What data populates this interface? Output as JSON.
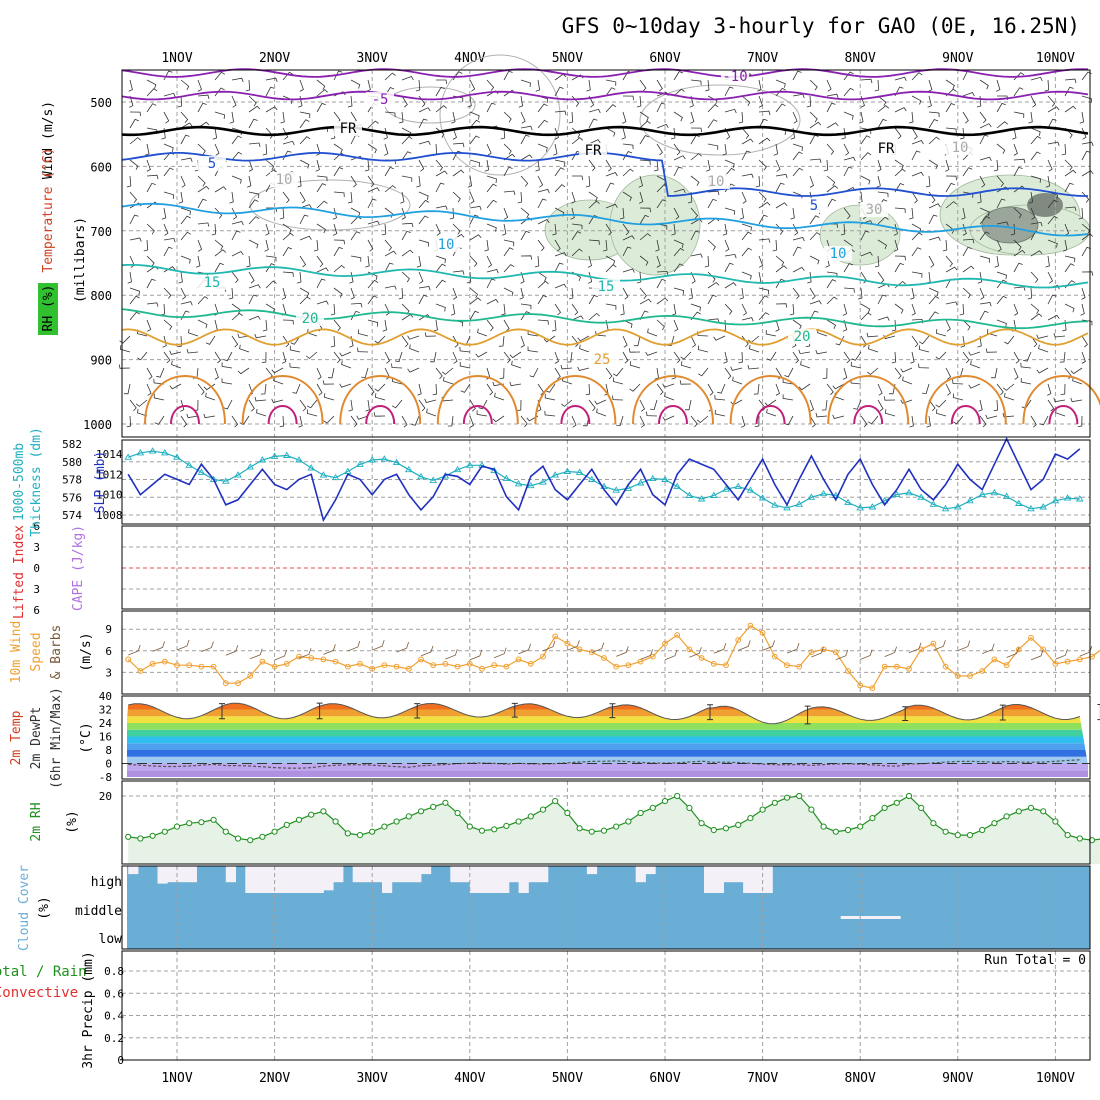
{
  "title": "GFS 0~10day 3-hourly for GAO (0E, 16.25N)",
  "dates": [
    "1NOV",
    "2NOV",
    "3NOV",
    "4NOV",
    "5NOV",
    "6NOV",
    "7NOV",
    "8NOV",
    "9NOV",
    "10NOV"
  ],
  "colors": {
    "frame": "#000000",
    "grid": "#a0a0a0",
    "thickness": "#20b0c0",
    "slp": "#2030c0",
    "wind_speed": "#f0a030",
    "rh": "#209020",
    "rh_fill": "#e6f2e6",
    "cloud": "#6aaed6",
    "zero_line": "#e05050"
  },
  "labels": {
    "upper_air": [
      "Wind (m/s)",
      "Temperature (°C)",
      "RH (%)",
      "(millibars)"
    ],
    "thickness_slp": [
      "1000-500mb",
      "Thickness (dm)",
      "SLP (mb)"
    ],
    "stability": [
      "Lifted Index",
      "CAPE (J/kg)"
    ],
    "wind10m": [
      "10m Wind",
      "Speed",
      "& Barbs",
      "(m/s)"
    ],
    "temp2m": [
      "2m Temp",
      "2m DewPt",
      "(6hr Min/Max)",
      "(°C)"
    ],
    "rh2m": [
      "2m RH",
      "(%)"
    ],
    "cloud": [
      "Cloud Cover",
      "(%)"
    ],
    "precip": [
      "Total / Rain",
      "Convective",
      "3hr Precip (mm)"
    ],
    "cloud_levels": [
      "high",
      "middle",
      "low"
    ],
    "run_total": "Run Total = 0"
  },
  "chart_data": [
    {
      "panel": "upper_air",
      "type": "heatmap",
      "ylabel": "millibars",
      "y_ticks": [
        500,
        600,
        700,
        800,
        900,
        1000
      ],
      "ylim": [
        1000,
        450
      ],
      "x": [
        "1NOV",
        "2NOV",
        "3NOV",
        "4NOV",
        "5NOV",
        "6NOV",
        "7NOV",
        "8NOV",
        "9NOV",
        "10NOV"
      ],
      "temperature_contours": [
        {
          "value": -10,
          "label": "-10",
          "color": "#8a20b0"
        },
        {
          "value": -5,
          "label": "-5",
          "color": "#8a20b0"
        },
        {
          "value": 0,
          "label": "FR",
          "color": "#000000"
        },
        {
          "value": 5,
          "label": "5",
          "color": "#2050d0"
        },
        {
          "value": 10,
          "label": "10",
          "color": "#20a0e0"
        },
        {
          "value": 15,
          "label": "15",
          "color": "#20b8b0"
        },
        {
          "value": 20,
          "label": "20",
          "color": "#20b890"
        },
        {
          "value": 25,
          "label": "25",
          "color": "#e0a030"
        }
      ],
      "contour_label_texts": [
        "-10",
        "-5",
        "FR",
        "FR",
        "FR",
        "5",
        "5",
        "10",
        "10",
        "15",
        "15",
        "20",
        "20",
        "25",
        "10",
        "10",
        "10",
        "30"
      ],
      "grid": true
    },
    {
      "panel": "thickness_slp",
      "type": "line",
      "x_days": [
        0.5,
        0.625,
        0.75,
        0.875,
        1.0,
        1.125,
        1.25,
        1.375,
        1.5,
        1.625,
        1.75,
        1.875,
        2.0,
        2.125,
        2.25,
        2.375,
        2.5,
        2.625,
        2.75,
        2.875,
        3.0,
        3.125,
        3.25,
        3.375,
        3.5,
        3.625,
        3.75,
        3.875,
        4.0,
        4.125,
        4.25,
        4.375,
        4.5,
        4.625,
        4.75,
        4.875,
        5.0,
        5.125,
        5.25,
        5.375,
        5.5,
        5.625,
        5.75,
        5.875,
        6.0,
        6.125,
        6.25,
        6.375,
        6.5,
        6.625,
        6.75,
        6.875,
        7.0,
        7.125,
        7.25,
        7.375,
        7.5,
        7.625,
        7.75,
        7.875,
        8.0,
        8.125,
        8.25,
        8.375,
        8.5,
        8.625,
        8.75,
        8.875,
        9.0,
        9.125,
        9.25,
        9.375,
        9.5,
        9.625,
        9.75,
        9.875,
        10.0,
        10.125,
        10.25
      ],
      "series": [
        {
          "name": "1000-500mb Thickness (dm)",
          "axis": "left",
          "ylim": [
            573,
            582
          ],
          "ticks": [
            574,
            576,
            578,
            580,
            582
          ],
          "values": [
            580.5,
            581.0,
            581.2,
            581.0,
            580.5,
            579.6,
            578.8,
            578.0,
            577.8,
            578.5,
            579.4,
            580.2,
            580.6,
            580.7,
            580.2,
            579.3,
            578.5,
            578.2,
            578.9,
            579.7,
            580.2,
            580.3,
            579.9,
            579.1,
            578.3,
            577.9,
            578.4,
            579.1,
            579.6,
            579.6,
            579.0,
            578.1,
            577.5,
            577.3,
            577.7,
            578.5,
            578.9,
            578.8,
            578.0,
            577.2,
            576.8,
            577.0,
            577.6,
            578.1,
            578.0,
            577.2,
            576.2,
            575.8,
            576.2,
            576.9,
            577.2,
            576.8,
            575.9,
            575.1,
            574.8,
            575.2,
            576.0,
            576.4,
            576.2,
            575.4,
            574.8,
            574.9,
            575.6,
            576.3,
            576.5,
            576.0,
            575.2,
            574.7,
            574.9,
            575.6,
            576.3,
            576.5,
            576.1,
            575.3,
            574.7,
            574.9,
            575.6,
            575.9,
            575.8
          ]
        },
        {
          "name": "SLP (mb)",
          "axis": "right",
          "ylim": [
            1006,
            1016
          ],
          "ticks": [
            1008,
            1010,
            1012,
            1014
          ],
          "values": [
            1012.0,
            1010.0,
            1011.0,
            1012.0,
            1011.5,
            1011.0,
            1013.0,
            1011.5,
            1009.0,
            1009.5,
            1011.0,
            1012.5,
            1011.0,
            1010.5,
            1011.5,
            1012.0,
            1007.5,
            1009.5,
            1012.0,
            1011.5,
            1010.0,
            1011.5,
            1012.0,
            1010.0,
            1008.5,
            1009.8,
            1012.0,
            1011.8,
            1011.0,
            1012.8,
            1012.5,
            1009.8,
            1008.5,
            1011.8,
            1012.8,
            1010.5,
            1009.5,
            1011.0,
            1012.5,
            1010.5,
            1009.0,
            1011.0,
            1012.5,
            1010.0,
            1009.0,
            1012.0,
            1013.5,
            1013.0,
            1012.5,
            1011.0,
            1009.5,
            1011.5,
            1013.5,
            1011.0,
            1009.0,
            1011.5,
            1013.8,
            1011.5,
            1009.5,
            1012.0,
            1013.5,
            1011.0,
            1009.0,
            1010.5,
            1012.5,
            1010.5,
            1009.5,
            1011.0,
            1013.0,
            1011.5,
            1010.5,
            1013.0,
            1015.5,
            1013.0,
            1010.5,
            1011.5,
            1014.0,
            1013.5,
            1014.5
          ]
        }
      ],
      "grid": true
    },
    {
      "panel": "stability",
      "type": "line",
      "ylabel": "Lifted Index / CAPE (J/kg)",
      "y_ticks": [
        6,
        3,
        0,
        -3,
        -6
      ],
      "ylim": [
        -6,
        6
      ],
      "series": [
        {
          "name": "Lifted Index",
          "values": []
        },
        {
          "name": "CAPE (J/kg)",
          "values": []
        }
      ],
      "grid": true
    },
    {
      "panel": "wind10m",
      "type": "line",
      "ylabel": "(m/s)",
      "y_ticks": [
        3,
        6,
        9
      ],
      "ylim": [
        0,
        10.5
      ],
      "series": [
        {
          "name": "10m Wind Speed",
          "values": [
            4.8,
            3.2,
            4.2,
            4.5,
            4.0,
            4.0,
            3.8,
            3.8,
            1.5,
            1.5,
            2.5,
            4.5,
            3.8,
            4.2,
            5.2,
            5.0,
            4.8,
            4.5,
            3.8,
            4.2,
            3.5,
            4.0,
            3.8,
            3.5,
            4.8,
            4.0,
            4.2,
            3.8,
            4.2,
            3.5,
            4.0,
            3.8,
            4.8,
            4.2,
            5.2,
            8.0,
            7.0,
            6.2,
            5.8,
            5.0,
            3.8,
            4.0,
            4.5,
            5.2,
            7.0,
            8.2,
            6.2,
            5.0,
            4.2,
            4.0,
            7.5,
            9.5,
            8.5,
            5.2,
            4.0,
            3.8,
            5.8,
            6.2,
            5.8,
            3.2,
            1.2,
            0.8,
            3.8,
            3.8,
            3.5,
            6.2,
            7.0,
            3.8,
            2.5,
            2.5,
            3.2,
            4.8,
            4.0,
            6.2,
            7.8,
            6.2,
            4.2,
            4.5,
            4.8,
            5.2,
            6.5
          ]
        }
      ],
      "grid": true
    },
    {
      "panel": "temp2m",
      "type": "area",
      "ylabel": "(°C)",
      "y_ticks": [
        -8,
        0,
        8,
        16,
        24,
        32,
        40
      ],
      "ylim": [
        -8,
        40
      ],
      "daily_max": [
        35.5,
        35.8,
        35.5,
        35.6,
        35.4,
        34.8,
        34.0,
        33.6,
        34.6,
        35.0
      ],
      "daily_min": [
        26.5,
        26.5,
        27.0,
        27.5,
        27.2,
        26.0,
        23.5,
        25.5,
        25.8,
        26.0
      ],
      "dewpoint": [
        -1.0,
        -2.0,
        -1.5,
        -0.5,
        0.5,
        1.0,
        0.0,
        -1.0,
        0.5,
        1.5
      ],
      "grid": true
    },
    {
      "panel": "rh2m",
      "type": "area",
      "ylabel": "(%)",
      "y_ticks": [
        20
      ],
      "ylim": [
        0,
        25
      ],
      "series": [
        {
          "name": "2m RH",
          "values": [
            8.0,
            7.5,
            8.3,
            9.5,
            11.0,
            12.0,
            12.3,
            13.0,
            9.5,
            7.5,
            7.0,
            8.0,
            9.5,
            11.5,
            13.0,
            14.5,
            15.5,
            12.5,
            9.0,
            8.5,
            9.5,
            11.0,
            12.5,
            14.0,
            15.5,
            16.8,
            18.0,
            15.0,
            11.0,
            9.8,
            10.2,
            11.2,
            12.5,
            14.0,
            16.0,
            18.5,
            15.0,
            10.5,
            9.5,
            9.8,
            11.0,
            12.5,
            15.0,
            16.5,
            18.5,
            20.0,
            16.5,
            12.0,
            10.0,
            10.5,
            11.5,
            13.5,
            16.0,
            18.0,
            19.5,
            20.0,
            16.0,
            11.0,
            9.5,
            10.0,
            11.0,
            13.5,
            16.5,
            18.0,
            20.0,
            16.5,
            12.0,
            9.5,
            8.5,
            8.5,
            10.0,
            12.0,
            14.0,
            15.5,
            16.5,
            15.5,
            12.5,
            8.5,
            7.5,
            7.0,
            7.5
          ]
        }
      ],
      "grid": true
    },
    {
      "panel": "cloud",
      "type": "bar",
      "categories": [
        "high",
        "middle",
        "low"
      ],
      "high_cover_percent": [
        70,
        100,
        100,
        35,
        40,
        40,
        40,
        100,
        100,
        100,
        40,
        100,
        0,
        0,
        0,
        0,
        0,
        0,
        0,
        0,
        10,
        40,
        100,
        40,
        40,
        40,
        0,
        40,
        40,
        40,
        70,
        100,
        100,
        40,
        40,
        0,
        0,
        0,
        0,
        40,
        0,
        40,
        40,
        100,
        100,
        100,
        100,
        70,
        100,
        100,
        100,
        100,
        40,
        70,
        100,
        100,
        100,
        100,
        100,
        0,
        0,
        40,
        40,
        0,
        0,
        0,
        100,
        100,
        100,
        100,
        100,
        100,
        100,
        100,
        100,
        100,
        100,
        100,
        100,
        100
      ],
      "grid": true
    },
    {
      "panel": "precip",
      "type": "bar",
      "ylabel": "3hr Precip (mm)",
      "y_ticks": [
        0,
        0.2,
        0.4,
        0.6,
        0.8
      ],
      "ylim": [
        0,
        1
      ],
      "values": [],
      "grid": true
    }
  ]
}
